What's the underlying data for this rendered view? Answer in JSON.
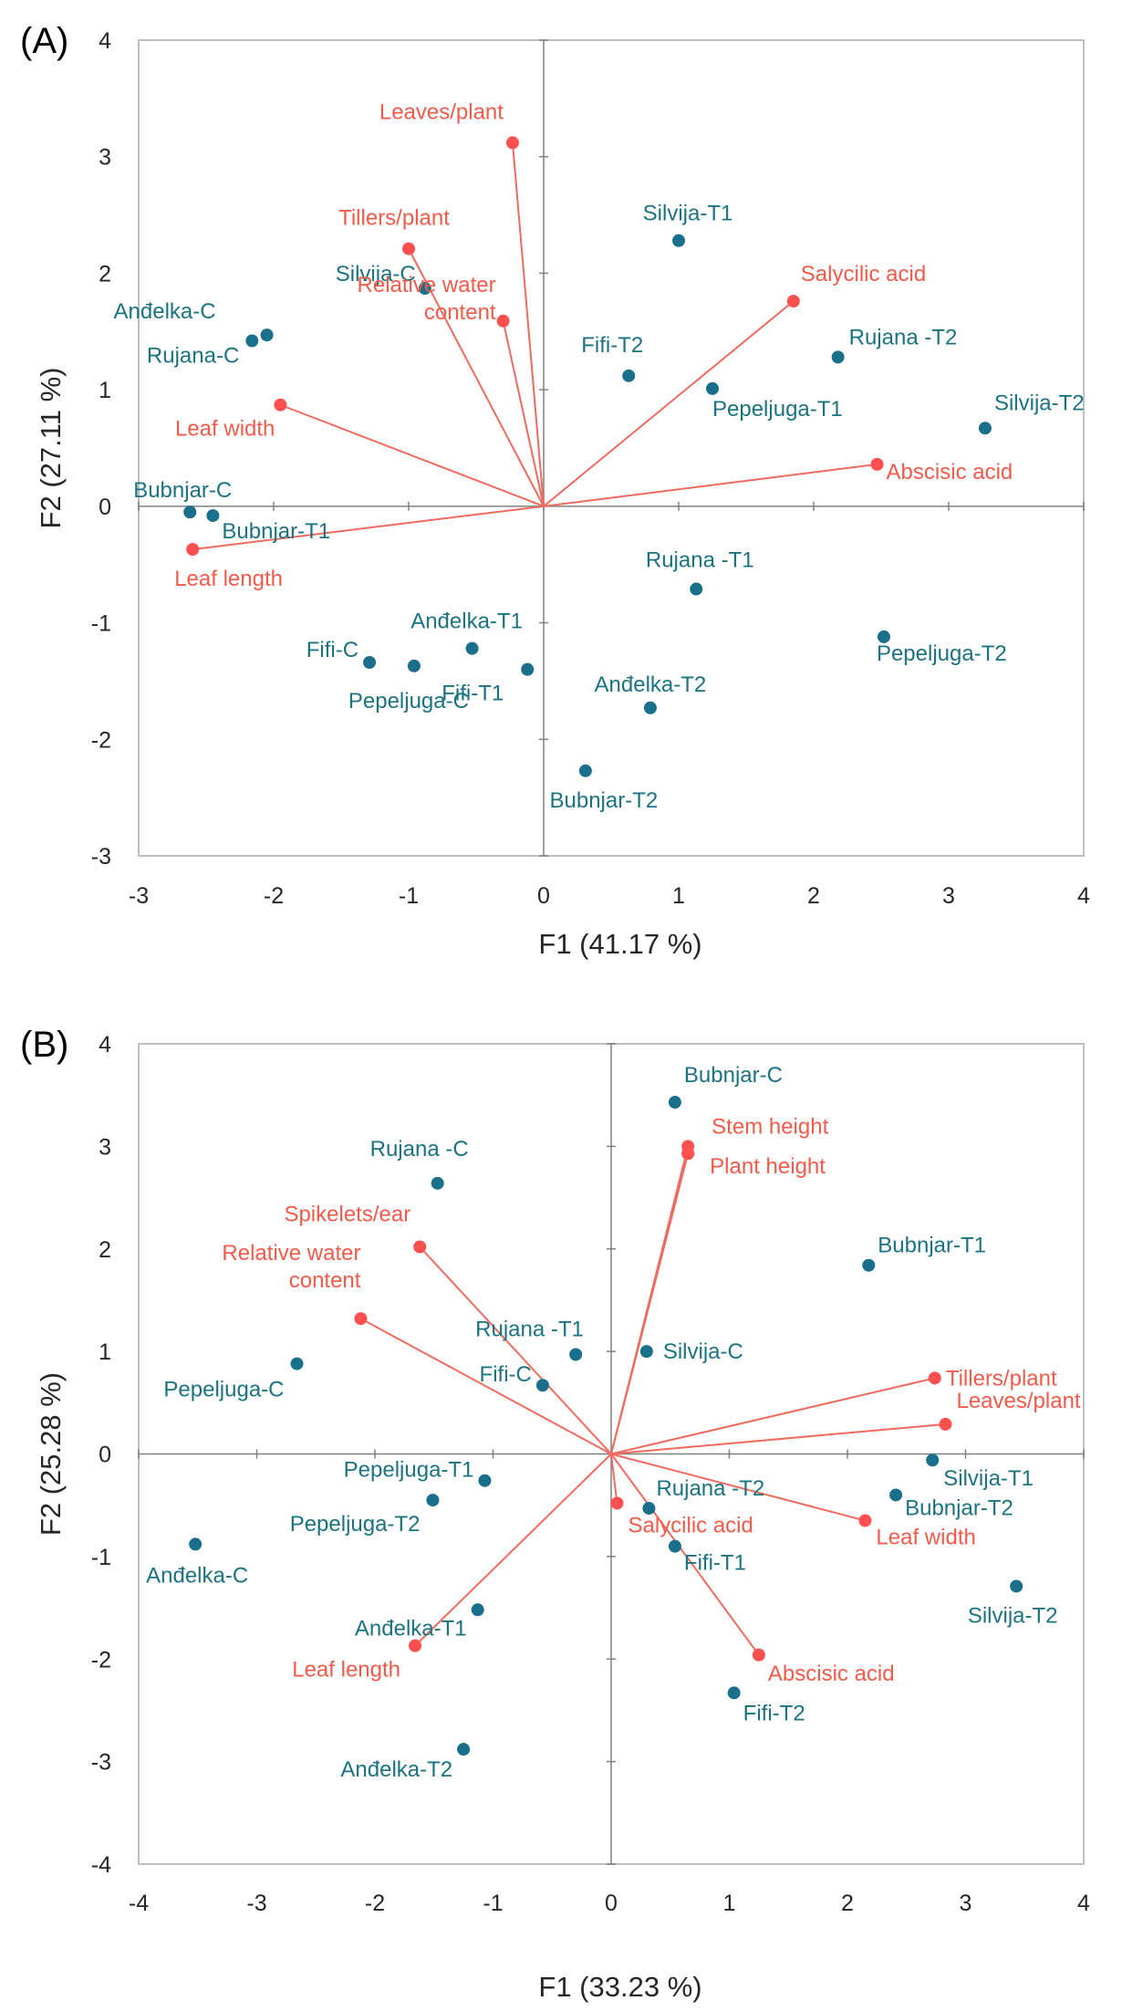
{
  "colors": {
    "observation": "#1a6f8a",
    "observation_label": "#1c7380",
    "variable": "#ff4f4f",
    "variable_label": "#f25a4a",
    "vector_line": "#ef6a5f",
    "frame": "#bfbfbf",
    "zero_line": "#808080",
    "text": "#262626"
  },
  "chart_data": [
    {
      "type": "scatter",
      "subtype": "pca-biplot",
      "panel_label": "(A)",
      "xlabel": "F1 (41.17 %)",
      "ylabel": "F2 (27.11 %)",
      "xlim": [
        -3,
        4
      ],
      "ylim": [
        -3,
        4
      ],
      "xticks": [
        "-3",
        "-2",
        "-1",
        "0",
        "1",
        "2",
        "3",
        "4"
      ],
      "yticks": [
        "4",
        "3",
        "2",
        "1",
        "0",
        "-1",
        "-2",
        "-3"
      ],
      "observations": [
        {
          "name": "Anđelka-C",
          "x": -2.05,
          "y": 1.47
        },
        {
          "name": "Rujana-C",
          "x": -2.16,
          "y": 1.42
        },
        {
          "name": "Silvija-C",
          "x": -0.88,
          "y": 1.87
        },
        {
          "name": "Bubnjar-C",
          "x": -2.62,
          "y": -0.05
        },
        {
          "name": "Bubnjar-T1",
          "x": -2.45,
          "y": -0.08
        },
        {
          "name": "Fifi-C",
          "x": -1.29,
          "y": -1.34
        },
        {
          "name": "Pepeljuga-C",
          "x": -0.96,
          "y": -1.37
        },
        {
          "name": "Anđelka-T1",
          "x": -0.53,
          "y": -1.22
        },
        {
          "name": "Fifi-T1",
          "x": -0.12,
          "y": -1.4
        },
        {
          "name": "Silvija-T1",
          "x": 1.0,
          "y": 2.28
        },
        {
          "name": "Fifi-T2",
          "x": 0.63,
          "y": 1.12
        },
        {
          "name": "Pepeljuga-T1",
          "x": 1.25,
          "y": 1.01
        },
        {
          "name": "Rujana -T2",
          "x": 2.18,
          "y": 1.28
        },
        {
          "name": "Silvija-T2",
          "x": 3.27,
          "y": 0.67
        },
        {
          "name": "Rujana -T1",
          "x": 1.13,
          "y": -0.71
        },
        {
          "name": "Pepeljuga-T2",
          "x": 2.52,
          "y": -1.12
        },
        {
          "name": "Anđelka-T2",
          "x": 0.79,
          "y": -1.73
        },
        {
          "name": "Bubnjar-T2",
          "x": 0.31,
          "y": -2.27
        }
      ],
      "variables": [
        {
          "name": "Leaves/plant",
          "x": -0.23,
          "y": 3.12
        },
        {
          "name": "Tillers/plant",
          "x": -1.0,
          "y": 2.21
        },
        {
          "name": "Relative water content",
          "label_lines": [
            "Relative water",
            "content"
          ],
          "x": -0.3,
          "y": 1.59
        },
        {
          "name": "Salycilic acid",
          "x": 1.85,
          "y": 1.76
        },
        {
          "name": "Leaf width",
          "x": -1.95,
          "y": 0.87
        },
        {
          "name": "Abscisic acid",
          "x": 2.47,
          "y": 0.36
        },
        {
          "name": "Leaf length",
          "x": -2.6,
          "y": -0.37
        }
      ]
    },
    {
      "type": "scatter",
      "subtype": "pca-biplot",
      "panel_label": "(B)",
      "xlabel": "F1 (33.23 %)",
      "ylabel": "F2 (25.28 %)",
      "xlim": [
        -4,
        4
      ],
      "ylim": [
        -4,
        4
      ],
      "xticks": [
        "-4",
        "-3",
        "-2",
        "-1",
        "0",
        "1",
        "2",
        "3",
        "4"
      ],
      "yticks": [
        "4",
        "3",
        "2",
        "1",
        "0",
        "-1",
        "-2",
        "-3",
        "-4"
      ],
      "observations": [
        {
          "name": "Bubnjar-C",
          "x": 0.54,
          "y": 3.43
        },
        {
          "name": "Rujana -C",
          "x": -1.47,
          "y": 2.64
        },
        {
          "name": "Bubnjar-T1",
          "x": 2.18,
          "y": 1.84
        },
        {
          "name": "Rujana -T1",
          "x": -0.3,
          "y": 0.97
        },
        {
          "name": "Silvija-C",
          "x": 0.3,
          "y": 1.0
        },
        {
          "name": "Fifi-C",
          "x": -0.58,
          "y": 0.67
        },
        {
          "name": "Pepeljuga-C",
          "x": -2.66,
          "y": 0.88
        },
        {
          "name": "Pepeljuga-T1",
          "x": -1.07,
          "y": -0.26
        },
        {
          "name": "Pepeljuga-T2",
          "x": -1.51,
          "y": -0.45
        },
        {
          "name": "Anđelka-C",
          "x": -3.52,
          "y": -0.88
        },
        {
          "name": "Rujana -T2",
          "x": 0.32,
          "y": -0.53
        },
        {
          "name": "Fifi-T1",
          "x": 0.54,
          "y": -0.9
        },
        {
          "name": "Silvija-T1",
          "x": 2.72,
          "y": -0.06
        },
        {
          "name": "Bubnjar-T2",
          "x": 2.41,
          "y": -0.4
        },
        {
          "name": "Silvija-T2",
          "x": 3.43,
          "y": -1.29
        },
        {
          "name": "Anđelka-T1",
          "x": -1.13,
          "y": -1.52
        },
        {
          "name": "Fifi-T2",
          "x": 1.04,
          "y": -2.33
        },
        {
          "name": "Anđelka-T2",
          "x": -1.25,
          "y": -2.88
        }
      ],
      "variables": [
        {
          "name": "Stem height",
          "x": 0.65,
          "y": 3.0
        },
        {
          "name": "Plant height",
          "x": 0.65,
          "y": 2.93
        },
        {
          "name": "Spikelets/ear",
          "x": -1.62,
          "y": 2.02
        },
        {
          "name": "Relative water content",
          "label_lines": [
            "Relative water",
            "content"
          ],
          "x": -2.12,
          "y": 1.32
        },
        {
          "name": "Tillers/plant",
          "x": 2.74,
          "y": 0.74
        },
        {
          "name": "Leaves/plant",
          "x": 2.83,
          "y": 0.29
        },
        {
          "name": "Salycilic acid",
          "x": 0.05,
          "y": -0.48
        },
        {
          "name": "Leaf width",
          "x": 2.15,
          "y": -0.65
        },
        {
          "name": "Abscisic acid",
          "x": 1.25,
          "y": -1.96
        },
        {
          "name": "Leaf length",
          "x": -1.66,
          "y": -1.87
        }
      ]
    }
  ]
}
